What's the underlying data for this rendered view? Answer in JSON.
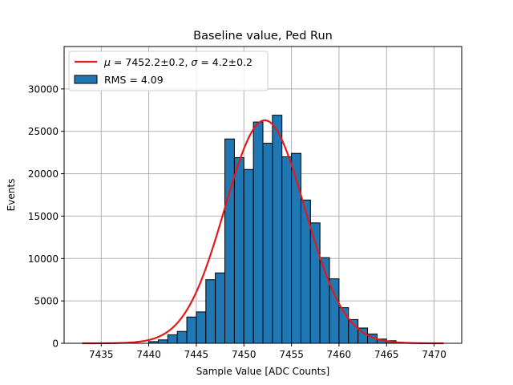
{
  "chart_data": {
    "type": "bar",
    "title": "Baseline value, Ped Run",
    "xlabel": "Sample Value [ADC Counts]",
    "ylabel": "Events",
    "xlim": [
      7431.1,
      7472.9
    ],
    "ylim": [
      0,
      35000
    ],
    "x_ticks": [
      7435,
      7440,
      7445,
      7450,
      7455,
      7460,
      7465,
      7470
    ],
    "y_ticks": [
      0,
      5000,
      10000,
      15000,
      20000,
      25000,
      30000
    ],
    "grid": true,
    "legend_position": "top-left",
    "bin_width": 1,
    "bins": {
      "left_edges": [
        7440,
        7441,
        7442,
        7443,
        7444,
        7445,
        7446,
        7447,
        7448,
        7449,
        7450,
        7451,
        7452,
        7453,
        7454,
        7455,
        7456,
        7457,
        7458,
        7459,
        7460,
        7461,
        7462,
        7463,
        7464,
        7465,
        7466
      ],
      "values": [
        200,
        400,
        1000,
        1400,
        3100,
        3700,
        7500,
        8300,
        24100,
        21900,
        20500,
        26100,
        23600,
        26900,
        22000,
        22400,
        16900,
        14200,
        10100,
        7600,
        4200,
        2800,
        1800,
        1100,
        500,
        300,
        100
      ]
    },
    "series": [
      {
        "name": "RMS = 4.09",
        "kind": "histogram",
        "color": "#1f77b4",
        "edge_color": "#000000"
      },
      {
        "name": "μ = 7452.2±0.2, σ = 4.2±0.2",
        "name_label": {
          "mu": "μ",
          "mu_rest": " = 7452.2±0.2, ",
          "sigma": "σ",
          "sigma_rest": " = 4.2±0.2"
        },
        "kind": "gaussian_fit",
        "color": "#e31a1c",
        "mu": 7452.2,
        "sigma": 4.2,
        "amplitude": 26300,
        "x_range": [
          7433,
          7471
        ]
      }
    ]
  }
}
